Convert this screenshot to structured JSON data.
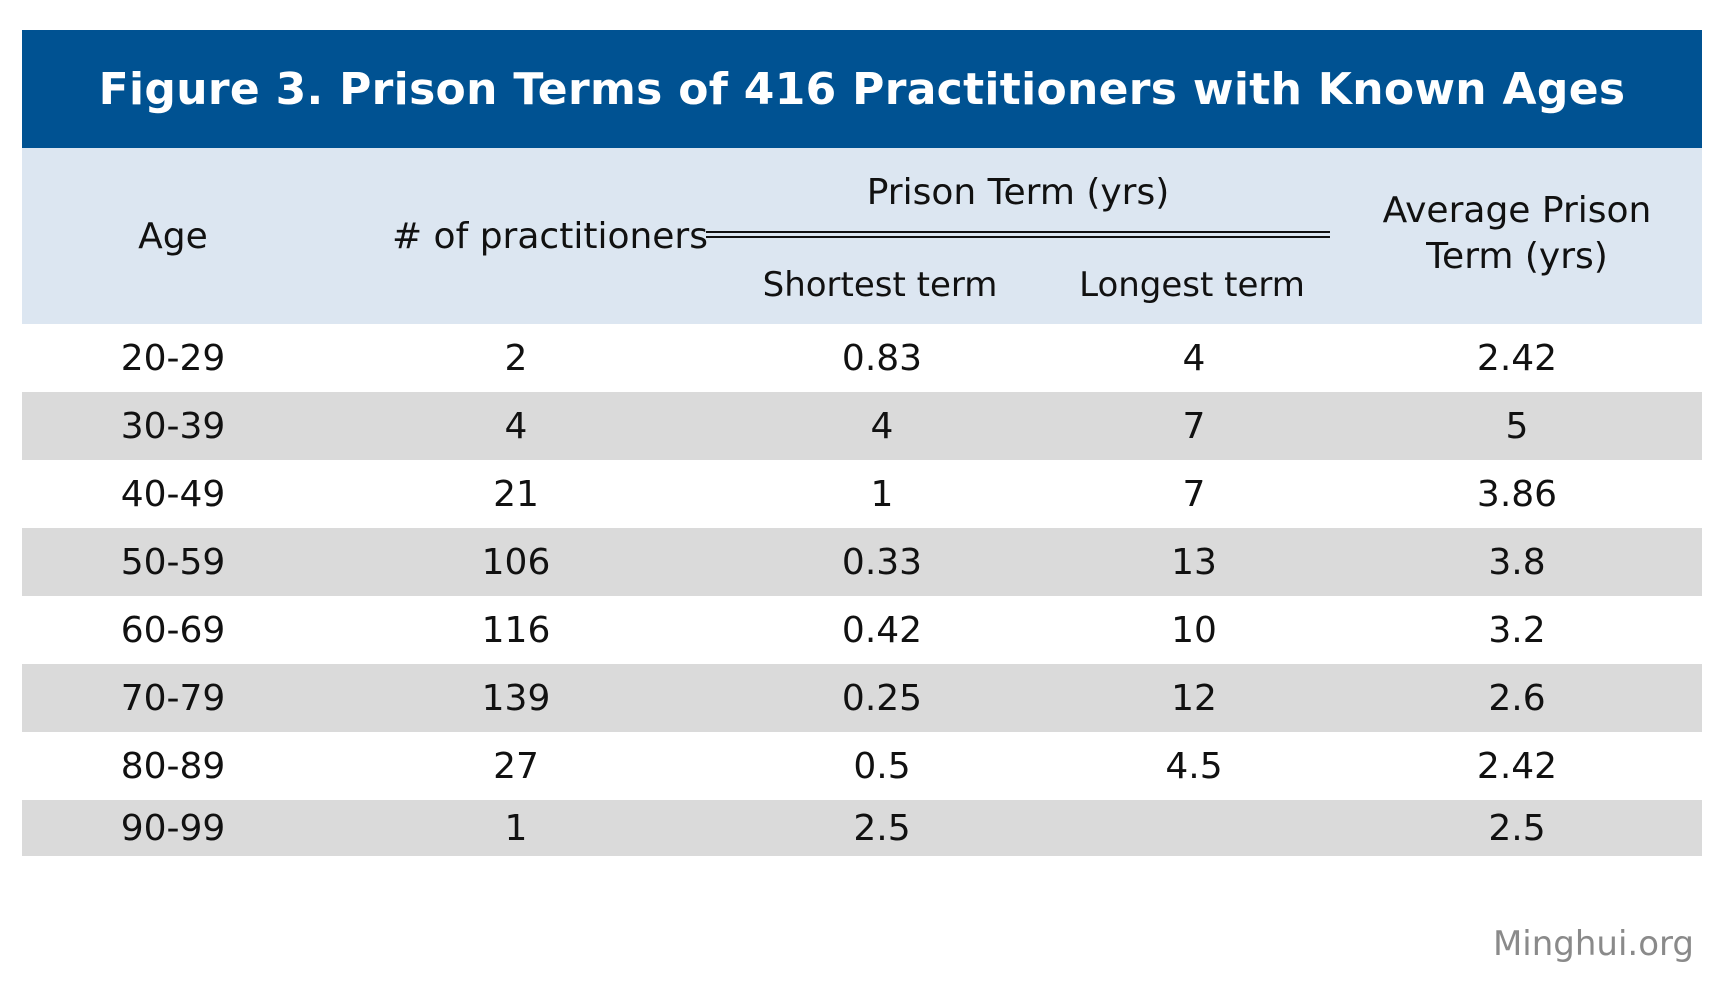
{
  "chart_data": {
    "type": "table",
    "title": "Figure 3. Prison Terms of 416 Practitioners with Known Ages",
    "header": {
      "age": "Age",
      "count": "# of practitioners",
      "prison_term_group": "Prison Term (yrs)",
      "shortest": "Shortest term",
      "longest": "Longest term",
      "average_line1": "Average Prison",
      "average_line2": "Term (yrs)"
    },
    "rows": [
      {
        "age": "20-29",
        "count": "2",
        "shortest": "0.83",
        "longest": "4",
        "average": "2.42"
      },
      {
        "age": "30-39",
        "count": "4",
        "shortest": "4",
        "longest": "7",
        "average": "5"
      },
      {
        "age": "40-49",
        "count": "21",
        "shortest": "1",
        "longest": "7",
        "average": "3.86"
      },
      {
        "age": "50-59",
        "count": "106",
        "shortest": "0.33",
        "longest": "13",
        "average": "3.8"
      },
      {
        "age": "60-69",
        "count": "116",
        "shortest": "0.42",
        "longest": "10",
        "average": "3.2"
      },
      {
        "age": "70-79",
        "count": "139",
        "shortest": "0.25",
        "longest": "12",
        "average": "2.6"
      },
      {
        "age": "80-89",
        "count": "27",
        "shortest": "0.5",
        "longest": "4.5",
        "average": "2.42"
      },
      {
        "age": "90-99",
        "count": "1",
        "shortest": "2.5",
        "longest": "",
        "average": "2.5"
      }
    ]
  },
  "credit": "Minghui.org",
  "colors": {
    "title_bg": "#005292",
    "header_bg": "#dce6f1",
    "alt_row_bg": "#dadada",
    "credit_text": "#8a8a8a"
  }
}
